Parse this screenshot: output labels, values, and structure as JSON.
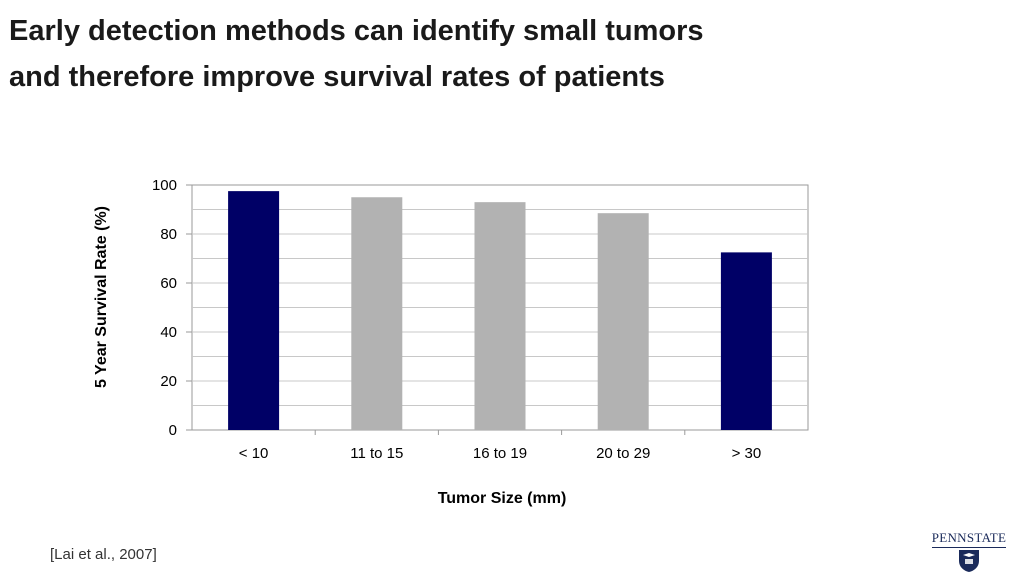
{
  "slide": {
    "title_line1": "Early detection methods can identify small tumors",
    "title_line2": "and therefore improve survival rates of patients",
    "citation": "[Lai et al., 2007]",
    "logo_text": "PENNSTATE"
  },
  "chart_data": {
    "type": "bar",
    "categories": [
      "< 10",
      "11 to 15",
      "16 to 19",
      "20 to 29",
      "> 30"
    ],
    "values": [
      97.5,
      95,
      93,
      88.5,
      72.5
    ],
    "bar_colors": [
      "#000066",
      "#b2b2b2",
      "#b2b2b2",
      "#b2b2b2",
      "#000066"
    ],
    "xlabel": "Tumor Size (mm)",
    "ylabel": "5 Year Survival Rate (%)",
    "ylim": [
      0,
      100
    ],
    "yticks": [
      0,
      20,
      40,
      60,
      80,
      100
    ],
    "grid": true
  },
  "colors": {
    "highlight_bar": "#000066",
    "default_bar": "#b2b2b2",
    "grid": "#c8c8c8",
    "brand": "#1a2a5a"
  }
}
